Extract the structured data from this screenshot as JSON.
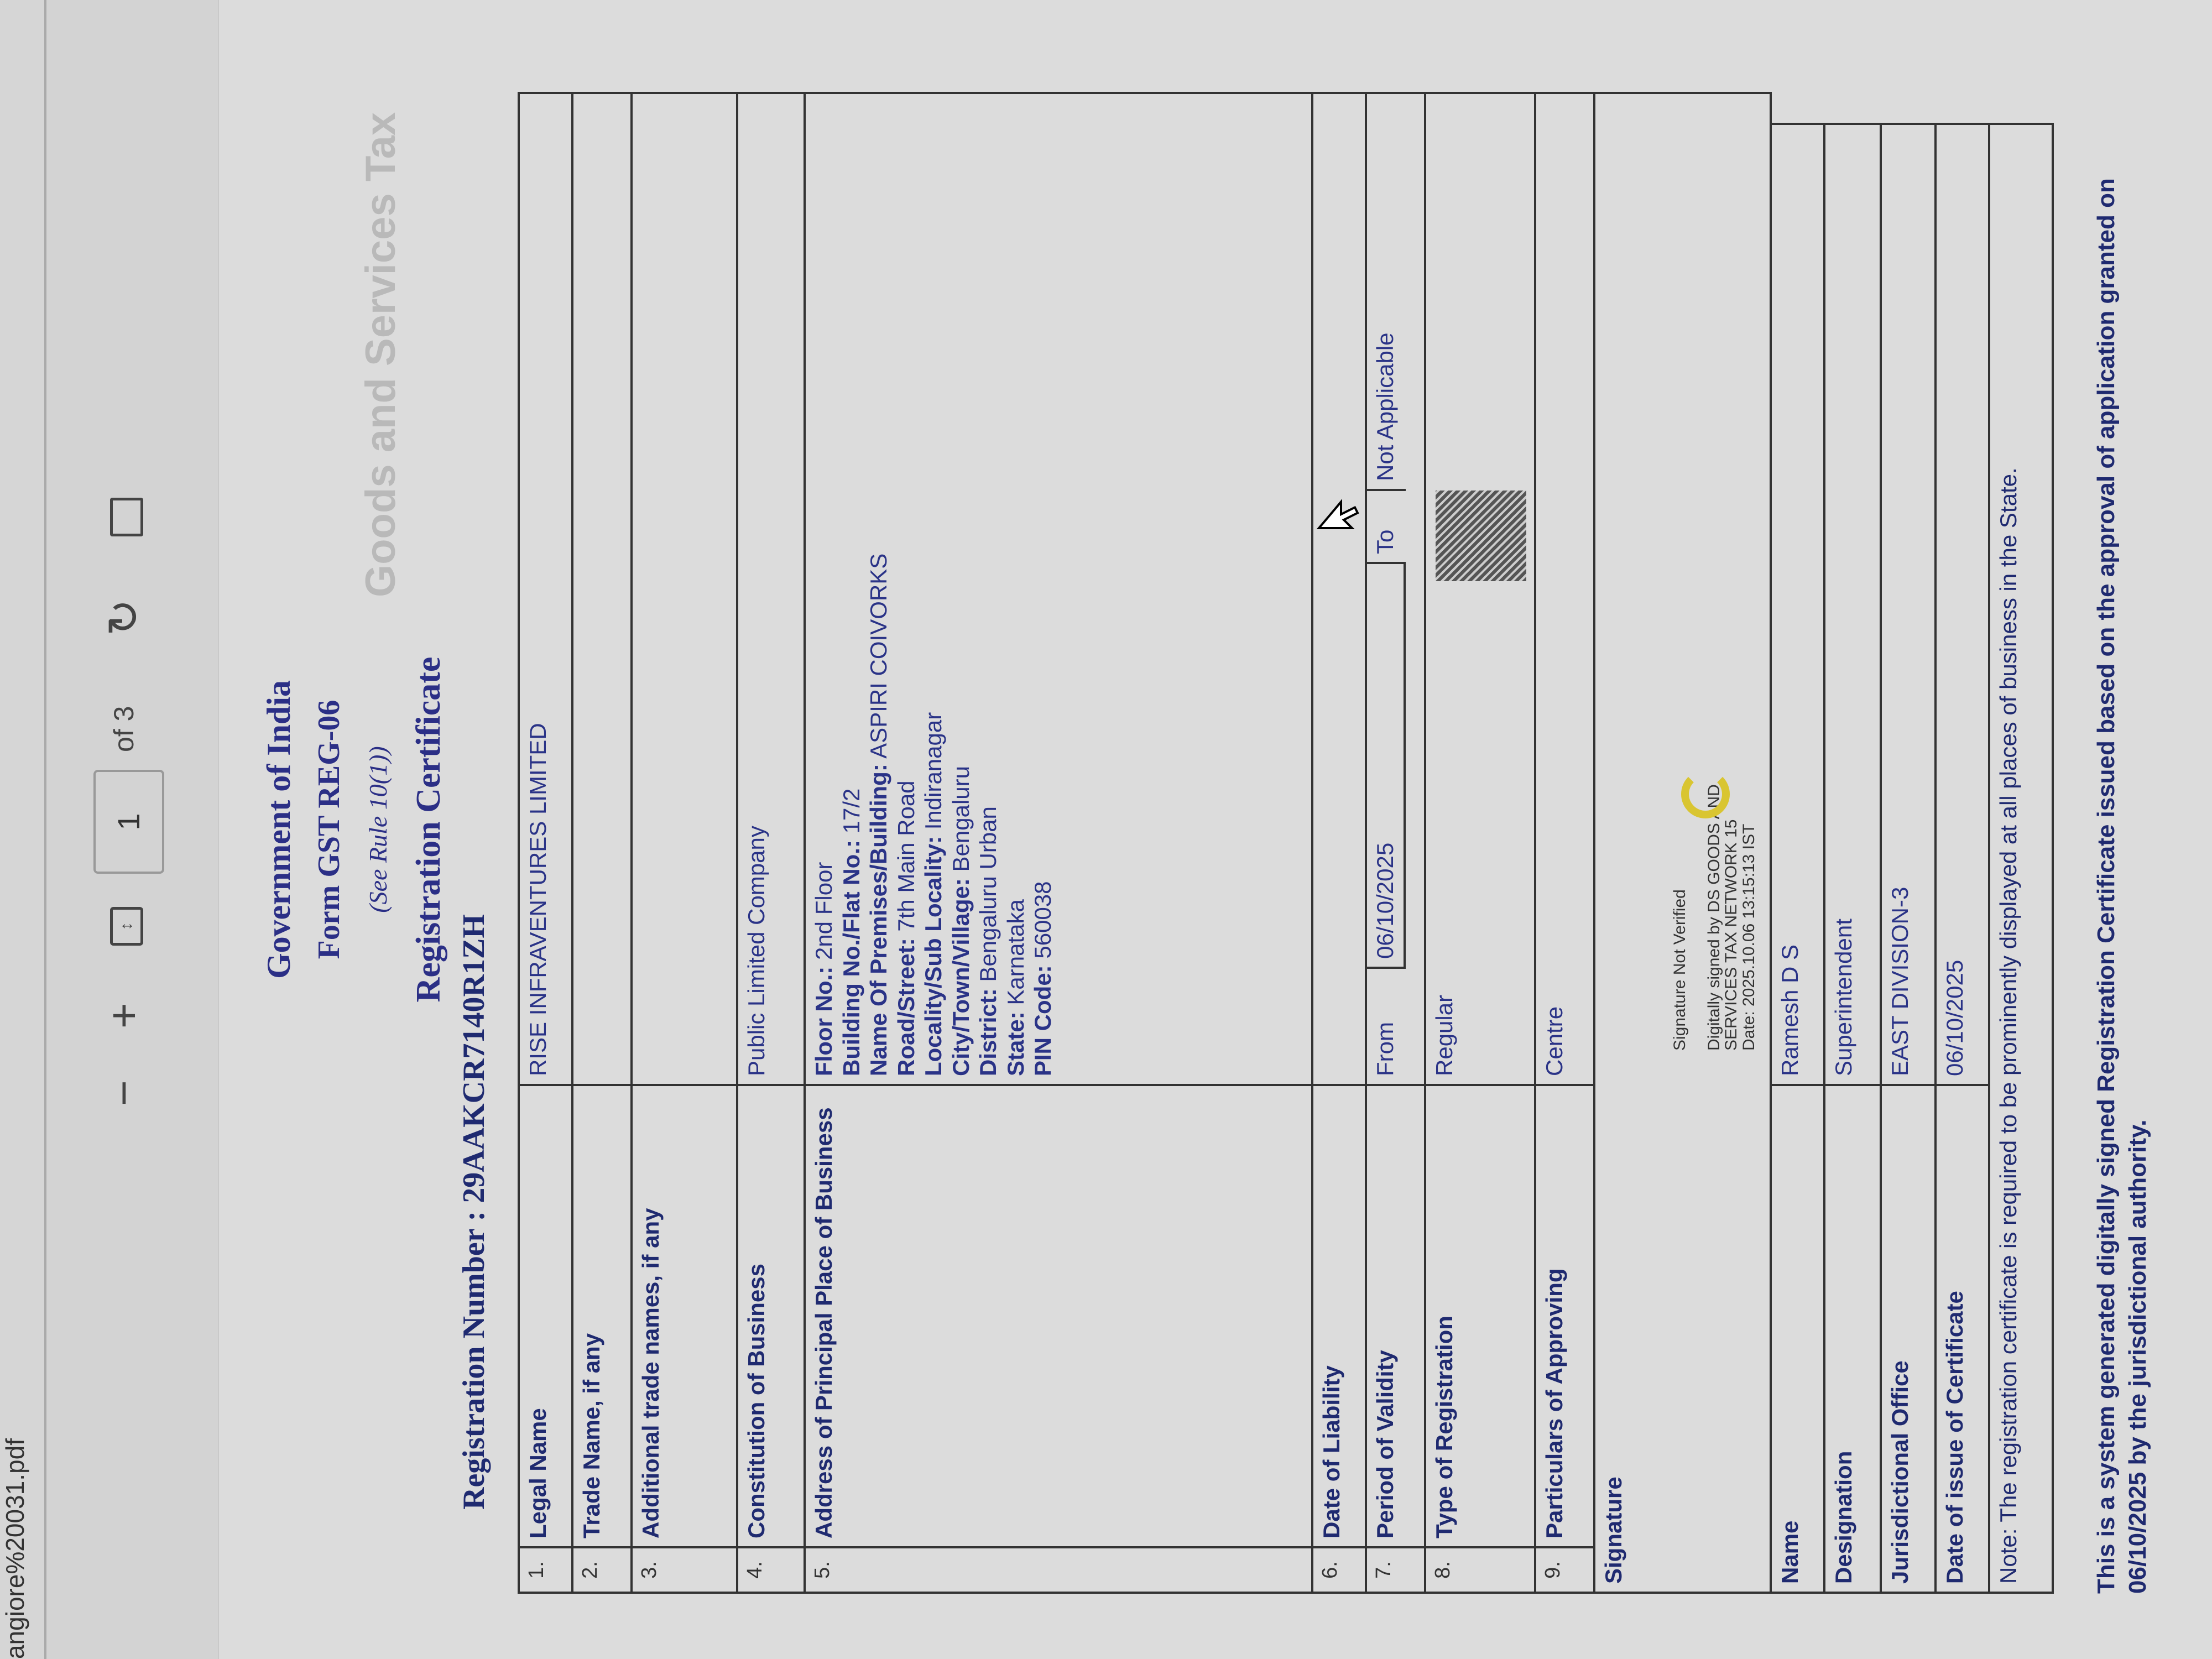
{
  "viewer": {
    "filename": "angiore%20031.pdf",
    "zoom_out": "−",
    "zoom_in": "+",
    "fit_icon": "fit-page-icon",
    "page_number": "1",
    "page_total": "of 3",
    "rotate_icon": "rotate-icon",
    "view_icon": "page-view-icon"
  },
  "document": {
    "watermark": "Goods and Services Tax",
    "header": {
      "line1": "Government of India",
      "line2": "Form GST REG-06",
      "line3": "(See Rule 10(1))",
      "line4": "Registration Certificate",
      "registration": "Registration Number : 29AAKCR7140R1ZH"
    },
    "rows": [
      {
        "num": "1.",
        "label": "Legal Name",
        "value": "RISE INFRAVENTURES LIMITED"
      },
      {
        "num": "2.",
        "label": "Trade Name, if any",
        "value": ""
      },
      {
        "num": "3.",
        "label": "Additional trade names, if any",
        "value": ""
      },
      {
        "num": "4.",
        "label": "Constitution of Business",
        "value": "Public Limited Company"
      },
      {
        "num": "5.",
        "label": "Address of Principal Place of Business"
      },
      {
        "num": "6.",
        "label": "Date of Liability",
        "value": ""
      },
      {
        "num": "7.",
        "label": "Period of Validity"
      },
      {
        "num": "8.",
        "label": "Type of Registration",
        "value": "Regular"
      },
      {
        "num": "9.",
        "label": "Particulars of Approving",
        "value": "Centre"
      }
    ],
    "address": [
      {
        "k": "Floor No.:",
        "v": "2nd Floor"
      },
      {
        "k": "Building No./Flat No.:",
        "v": "17/2"
      },
      {
        "k": "Name Of Premises/Building:",
        "v": "ASPIRI COIVORKS"
      },
      {
        "k": "Road/Street:",
        "v": "7th Main Road"
      },
      {
        "k": "Locality/Sub Locality:",
        "v": "Indiranagar"
      },
      {
        "k": "City/Town/Village:",
        "v": "Bengaluru"
      },
      {
        "k": "District:",
        "v": "Bengaluru Urban"
      },
      {
        "k": "State:",
        "v": "Karnataka"
      },
      {
        "k": "PIN Code:",
        "v": "560038"
      }
    ],
    "validity": {
      "from_label": "From",
      "from": "06/10/2025",
      "to_label": "To",
      "to": "Not Applicable"
    },
    "signature": {
      "label": "Signature",
      "status": "Signature Not Verified",
      "line1": "Digitally signed by DS GOODS AND",
      "line2": "SERVICES TAX NETWORK 15",
      "line3": "Date: 2025.10.06 13:15:13 IST"
    },
    "officer": [
      {
        "label": "Name",
        "value": "Ramesh D S"
      },
      {
        "label": "Designation",
        "value": "Superintendent"
      },
      {
        "label": "Jurisdictional Office",
        "value": "EAST DIVISION-3"
      },
      {
        "label": "Date of issue of Certificate",
        "value": "06/10/2025"
      }
    ],
    "note": "Note: The registration certificate is required to be prominently displayed at all places of business in the State.",
    "footer": "This is a system generated digitally signed Registration Certificate issued based on the approval of application granted on 06/10/2025 by the jurisdictional authority."
  }
}
